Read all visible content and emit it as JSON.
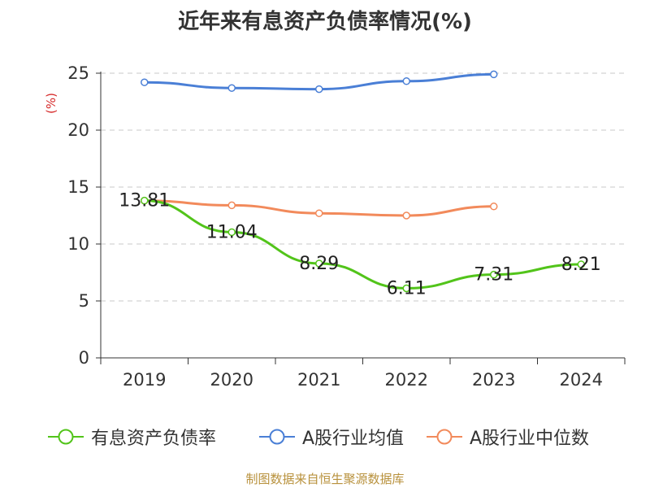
{
  "title": "近年来有息资产负债率情况(%)",
  "source": "制图数据来自恒生聚源数据库",
  "chart_data": {
    "type": "line",
    "title": "近年来有息资产负债率情况(%)",
    "ylabel": "(%)",
    "xlabel": "",
    "categories": [
      "2019",
      "2020",
      "2021",
      "2022",
      "2023",
      "2024"
    ],
    "ylim": [
      0,
      25
    ],
    "yticks": [
      "0",
      "5",
      "10",
      "15",
      "20",
      "25"
    ],
    "grid": true,
    "legend_position": "bottom",
    "series": [
      {
        "name": "有息资产负债率",
        "color": "#52c41a",
        "values": [
          13.81,
          11.04,
          8.29,
          6.11,
          7.31,
          8.21
        ],
        "labels": [
          "13.81",
          "11.04",
          "8.29",
          "6.11",
          "7.31",
          "8.21"
        ]
      },
      {
        "name": "A股行业均值",
        "color": "#4a7fd6",
        "values": [
          24.2,
          23.7,
          23.6,
          24.3,
          24.9,
          null
        ]
      },
      {
        "name": "A股行业中位数",
        "color": "#f28a5b",
        "values": [
          13.8,
          13.4,
          12.7,
          12.5,
          13.3,
          null
        ]
      }
    ]
  }
}
